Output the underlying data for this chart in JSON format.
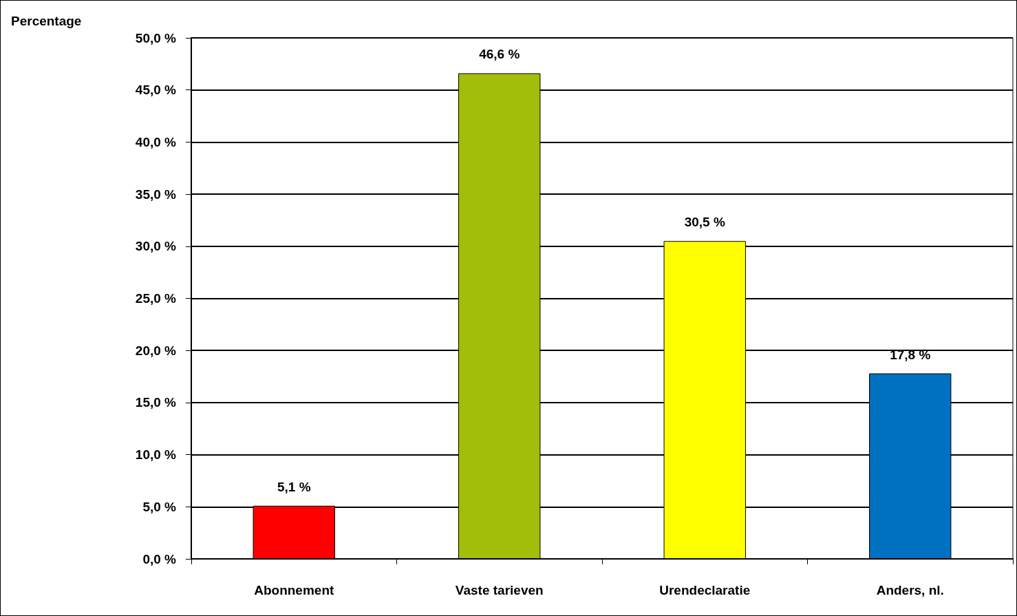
{
  "chart_data": {
    "type": "bar",
    "ylabel": "Percentage",
    "categories": [
      "Abonnement",
      "Vaste tarieven",
      "Urendeclaratie",
      "Anders, nl."
    ],
    "values": [
      5.1,
      46.6,
      30.5,
      17.8
    ],
    "colors": [
      "#ff0000",
      "#a3bd0a",
      "#ffff00",
      "#0070c0"
    ],
    "value_labels": [
      "5,1 %",
      "46,6 %",
      "30,5 %",
      "17,8 %"
    ],
    "ylim": [
      0,
      50
    ],
    "yticks": [
      {
        "value": 0,
        "label": "0,0 %"
      },
      {
        "value": 5,
        "label": "5,0 %"
      },
      {
        "value": 10,
        "label": "10,0 %"
      },
      {
        "value": 15,
        "label": "15,0 %"
      },
      {
        "value": 20,
        "label": "20,0 %"
      },
      {
        "value": 25,
        "label": "25,0 %"
      },
      {
        "value": 30,
        "label": "30,0 %"
      },
      {
        "value": 35,
        "label": "35,0 %"
      },
      {
        "value": 40,
        "label": "40,0 %"
      },
      {
        "value": 45,
        "label": "45,0 %"
      },
      {
        "value": 50,
        "label": "50,0 %"
      }
    ],
    "grid": "y"
  }
}
